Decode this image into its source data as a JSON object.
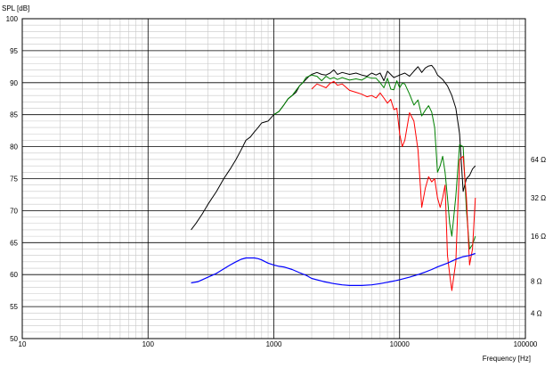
{
  "chart_data": {
    "type": "line",
    "ylabel": "SPL [dB]",
    "xlabel": "Frequency [Hz]",
    "x_scale": "log",
    "xlim": [
      10,
      100000
    ],
    "ylim": [
      50,
      100
    ],
    "grid": true,
    "x_ticks": [
      10,
      100,
      1000,
      10000,
      100000
    ],
    "x_tick_labels": [
      "10",
      "100",
      "1000",
      "10000",
      "100000"
    ],
    "y_ticks": [
      50,
      55,
      60,
      65,
      70,
      75,
      80,
      85,
      90,
      95,
      100
    ],
    "y_tick_labels": [
      "50",
      "55",
      "60",
      "65",
      "70",
      "75",
      "80",
      "85",
      "90",
      "95",
      "100"
    ],
    "right_axis": {
      "scale": "log",
      "ticks": [
        4,
        8,
        16,
        32,
        64
      ],
      "tick_labels": [
        "4 Ω",
        "8 Ω",
        "16 Ω",
        "32 Ω",
        "64 Ω"
      ],
      "tick_y_positions_db": [
        54,
        59,
        66,
        72,
        78
      ]
    },
    "series": [
      {
        "color": "#000000",
        "x": [
          220,
          240,
          270,
          300,
          350,
          400,
          450,
          500,
          550,
          600,
          650,
          700,
          750,
          800,
          900,
          1000,
          1100,
          1200,
          1300,
          1400,
          1500,
          1600,
          1700,
          1800,
          1900,
          2000,
          2200,
          2400,
          2600,
          2800,
          3000,
          3200,
          3500,
          4000,
          4500,
          5000,
          5500,
          6000,
          6500,
          7000,
          7500,
          8000,
          9000,
          10000,
          11000,
          12000,
          13000,
          14000,
          15000,
          16000,
          17000,
          18000,
          19000,
          20000,
          22000,
          24000,
          26000,
          28000,
          30000,
          32000,
          34000,
          36000,
          38000,
          40000
        ],
        "y": [
          67,
          68,
          69.5,
          71,
          73,
          75,
          76.5,
          78,
          79.5,
          81,
          81.5,
          82.3,
          83,
          83.7,
          84,
          85,
          85.5,
          86.5,
          87.5,
          88,
          88.5,
          89.5,
          90,
          90.5,
          91,
          91.3,
          91.6,
          91.3,
          91.2,
          91.5,
          92,
          91.3,
          91.6,
          91.3,
          91.5,
          91.2,
          91,
          91.5,
          91.2,
          91.5,
          90.3,
          91.8,
          90.8,
          91.2,
          91.5,
          91,
          91.8,
          92.5,
          91.6,
          92.3,
          92.6,
          92.7,
          92.1,
          91.2,
          90.5,
          89.5,
          88,
          86,
          82,
          73,
          75,
          75.5,
          76.5,
          77
        ]
      },
      {
        "color": "#008000",
        "x": [
          1000,
          1100,
          1200,
          1300,
          1400,
          1500,
          1600,
          1700,
          1800,
          1900,
          2000,
          2200,
          2400,
          2600,
          2800,
          3000,
          3200,
          3500,
          4000,
          4500,
          5000,
          5500,
          6000,
          6500,
          7000,
          7500,
          8000,
          8500,
          9000,
          9500,
          10000,
          10500,
          11000,
          12000,
          13000,
          14000,
          15000,
          16000,
          17000,
          18000,
          19000,
          20000,
          21000,
          22000,
          23000,
          24000,
          25000,
          26000,
          28000,
          30000,
          32000,
          34000,
          36000,
          38000,
          40000
        ],
        "y": [
          85,
          85.5,
          86.5,
          87.5,
          88,
          88.8,
          89.5,
          90,
          90.8,
          91,
          91.2,
          91,
          90.3,
          91,
          90.6,
          90.8,
          90.5,
          90.8,
          90.4,
          90.6,
          90.4,
          90.9,
          90.7,
          90.7,
          90,
          89.2,
          90.7,
          89,
          88.9,
          90.3,
          89.2,
          89.9,
          89.8,
          88.2,
          86.5,
          87.3,
          84.8,
          85.7,
          86.4,
          85.4,
          83,
          76,
          77,
          78.5,
          76,
          72,
          68,
          66,
          72.3,
          80.3,
          80,
          70,
          64,
          64.7,
          66
        ]
      },
      {
        "color": "#ff0000",
        "x": [
          2000,
          2200,
          2400,
          2600,
          2800,
          3000,
          3200,
          3500,
          4000,
          4500,
          5000,
          5500,
          6000,
          6500,
          7000,
          7500,
          8000,
          8500,
          9000,
          9500,
          10000,
          10500,
          11000,
          12000,
          13000,
          14000,
          15000,
          16000,
          17000,
          18000,
          19000,
          20000,
          21000,
          22000,
          23000,
          24000,
          25000,
          26000,
          28000,
          30000,
          32000,
          34000,
          36000,
          38000,
          40000
        ],
        "y": [
          89,
          89.8,
          89.5,
          89.2,
          89.9,
          90.2,
          89.6,
          89.8,
          88.8,
          88.5,
          88.2,
          87.8,
          88,
          87.6,
          88.4,
          87.6,
          86.8,
          87.4,
          85.8,
          86,
          82,
          80,
          81,
          85.3,
          84,
          79.5,
          70.5,
          73.5,
          75.3,
          74.5,
          75,
          72,
          70.5,
          72,
          74,
          63,
          60,
          57.5,
          62,
          78,
          78.5,
          72,
          61.5,
          64,
          72
        ]
      },
      {
        "color": "#0000ff",
        "x": [
          220,
          250,
          300,
          350,
          400,
          450,
          500,
          550,
          600,
          650,
          700,
          750,
          800,
          900,
          1000,
          1100,
          1200,
          1400,
          1600,
          1800,
          2000,
          2500,
          3000,
          3500,
          4000,
          4500,
          5000,
          6000,
          7000,
          8000,
          9000,
          10000,
          12000,
          14000,
          16000,
          18000,
          20000,
          24000,
          28000,
          32000,
          36000,
          40000
        ],
        "y": [
          58.7,
          58.9,
          59.6,
          60.2,
          60.9,
          61.5,
          62,
          62.4,
          62.6,
          62.6,
          62.6,
          62.5,
          62.3,
          61.8,
          61.5,
          61.3,
          61.2,
          60.8,
          60.3,
          59.9,
          59.4,
          58.9,
          58.6,
          58.4,
          58.3,
          58.3,
          58.3,
          58.4,
          58.6,
          58.8,
          59,
          59.2,
          59.6,
          60,
          60.4,
          60.8,
          61.2,
          61.8,
          62.4,
          62.8,
          63,
          63.3
        ]
      }
    ]
  }
}
